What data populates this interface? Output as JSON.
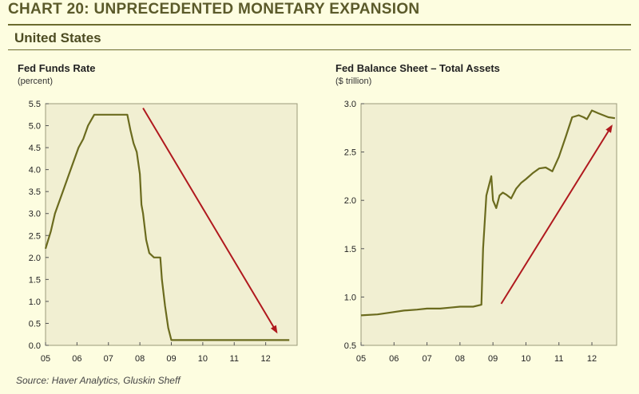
{
  "header": {
    "title": "CHART 20: UNPRECEDENTED MONETARY EXPANSION",
    "subtitle": "United States"
  },
  "source": "Source: Haver Analytics, Gluskin Sheff",
  "colors": {
    "series": "#6b6b1e",
    "arrow": "#b0191e",
    "plot_bg": "#f1efd2",
    "page_bg": "#fdfde0"
  },
  "chart_data": [
    {
      "type": "line",
      "title": "Fed Funds Rate",
      "unit": "(percent)",
      "xlim": [
        2005,
        2013
      ],
      "ylim": [
        0.0,
        5.5
      ],
      "xticks": [
        {
          "v": 2005,
          "label": "05"
        },
        {
          "v": 2006,
          "label": "06"
        },
        {
          "v": 2007,
          "label": "07"
        },
        {
          "v": 2008,
          "label": "08"
        },
        {
          "v": 2009,
          "label": "09"
        },
        {
          "v": 2010,
          "label": "10"
        },
        {
          "v": 2011,
          "label": "11"
        },
        {
          "v": 2012,
          "label": "12"
        }
      ],
      "yticks": [
        {
          "v": 0.0,
          "label": "0.0"
        },
        {
          "v": 0.5,
          "label": "0.5"
        },
        {
          "v": 1.0,
          "label": "1.0"
        },
        {
          "v": 1.5,
          "label": "1.5"
        },
        {
          "v": 2.0,
          "label": "2.0"
        },
        {
          "v": 2.5,
          "label": "2.5"
        },
        {
          "v": 3.0,
          "label": "3.0"
        },
        {
          "v": 3.5,
          "label": "3.5"
        },
        {
          "v": 4.0,
          "label": "4.0"
        },
        {
          "v": 4.5,
          "label": "4.5"
        },
        {
          "v": 5.0,
          "label": "5.0"
        },
        {
          "v": 5.5,
          "label": "5.5"
        }
      ],
      "grid": false,
      "series": [
        {
          "x": [
            2005.0,
            2005.17,
            2005.3,
            2005.45,
            2005.6,
            2005.75,
            2005.9,
            2006.05,
            2006.2,
            2006.35,
            2006.55,
            2006.7,
            2007.0,
            2007.3,
            2007.6,
            2007.7,
            2007.8,
            2007.9,
            2008.0,
            2008.05,
            2008.1,
            2008.2,
            2008.3,
            2008.45,
            2008.65,
            2008.7,
            2008.8,
            2008.9,
            2009.0,
            2010.0,
            2011.0,
            2012.0,
            2012.75
          ],
          "y": [
            2.2,
            2.6,
            3.0,
            3.3,
            3.6,
            3.9,
            4.2,
            4.5,
            4.7,
            5.0,
            5.25,
            5.25,
            5.25,
            5.25,
            5.25,
            4.9,
            4.6,
            4.4,
            3.9,
            3.2,
            3.0,
            2.4,
            2.1,
            2.0,
            2.0,
            1.5,
            0.9,
            0.4,
            0.12,
            0.12,
            0.12,
            0.12,
            0.12
          ]
        }
      ],
      "arrow": {
        "from": [
          2008.1,
          5.4
        ],
        "to": [
          2012.35,
          0.3
        ]
      }
    },
    {
      "type": "line",
      "title": "Fed Balance Sheet – Total Assets",
      "unit": "($ trillion)",
      "xlim": [
        2005,
        2012.75
      ],
      "ylim": [
        0.5,
        3.0
      ],
      "xticks": [
        {
          "v": 2005,
          "label": "05"
        },
        {
          "v": 2006,
          "label": "06"
        },
        {
          "v": 2007,
          "label": "07"
        },
        {
          "v": 2008,
          "label": "08"
        },
        {
          "v": 2009,
          "label": "09"
        },
        {
          "v": 2010,
          "label": "10"
        },
        {
          "v": 2011,
          "label": "11"
        },
        {
          "v": 2012,
          "label": "12"
        }
      ],
      "yticks": [
        {
          "v": 0.5,
          "label": "0.5"
        },
        {
          "v": 1.0,
          "label": "1.0"
        },
        {
          "v": 1.5,
          "label": "1.5"
        },
        {
          "v": 2.0,
          "label": "2.0"
        },
        {
          "v": 2.5,
          "label": "2.5"
        },
        {
          "v": 3.0,
          "label": "3.0"
        }
      ],
      "grid": false,
      "series": [
        {
          "x": [
            2005.0,
            2005.5,
            2005.9,
            2006.3,
            2006.7,
            2007.0,
            2007.4,
            2007.7,
            2008.0,
            2008.4,
            2008.65,
            2008.7,
            2008.8,
            2008.95,
            2009.0,
            2009.1,
            2009.2,
            2009.3,
            2009.4,
            2009.55,
            2009.7,
            2009.85,
            2010.0,
            2010.2,
            2010.4,
            2010.6,
            2010.8,
            2011.0,
            2011.2,
            2011.4,
            2011.6,
            2011.75,
            2011.85,
            2012.0,
            2012.2,
            2012.5,
            2012.7
          ],
          "y": [
            0.81,
            0.82,
            0.84,
            0.86,
            0.87,
            0.88,
            0.88,
            0.89,
            0.9,
            0.9,
            0.92,
            1.5,
            2.05,
            2.25,
            2.0,
            1.92,
            2.05,
            2.08,
            2.06,
            2.02,
            2.12,
            2.18,
            2.22,
            2.28,
            2.33,
            2.34,
            2.3,
            2.45,
            2.65,
            2.86,
            2.88,
            2.86,
            2.84,
            2.93,
            2.9,
            2.86,
            2.85
          ]
        }
      ],
      "arrow": {
        "from": [
          2009.25,
          0.93
        ],
        "to": [
          2012.6,
          2.77
        ]
      }
    }
  ]
}
